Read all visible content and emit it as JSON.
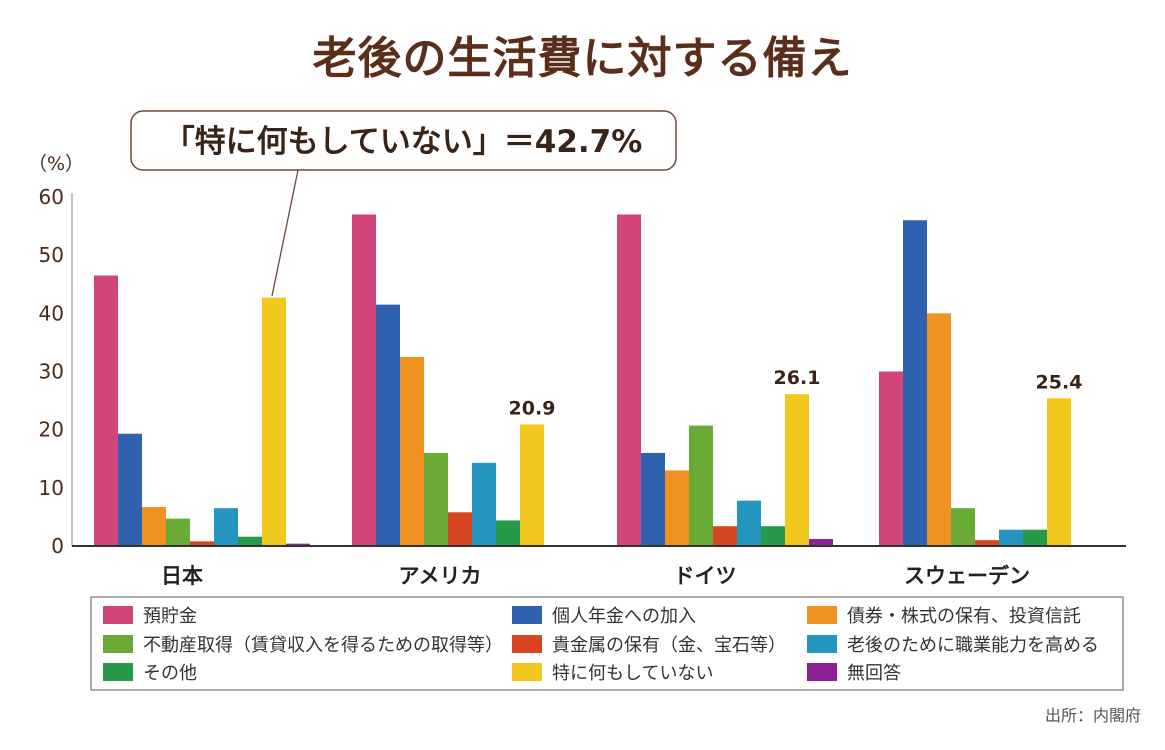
{
  "title": "老後の生活費に対する備え",
  "source": "出所：内閣府",
  "callout": "「特に何もしていない」＝42.7%",
  "chart_data": {
    "type": "bar",
    "unit_label": "（%）",
    "ylim": [
      0,
      60
    ],
    "yticks": [
      0,
      10,
      20,
      30,
      40,
      50,
      60
    ],
    "grid": false,
    "legend_position": "bottom",
    "categories": [
      "日本",
      "アメリカ",
      "ドイツ",
      "スウェーデン"
    ],
    "series": [
      {
        "name": "預貯金",
        "color": "#d0457a",
        "values": [
          46.5,
          57.0,
          57.0,
          30.0
        ]
      },
      {
        "name": "個人年金への加入",
        "color": "#2f62ae",
        "values": [
          19.3,
          41.5,
          16.0,
          56.0
        ]
      },
      {
        "name": "債券・株式の保有、投資信託",
        "color": "#ef9222",
        "values": [
          6.7,
          32.5,
          13.0,
          40.0
        ]
      },
      {
        "name": "不動産取得（賃貸収入を得るための取得等）",
        "color": "#6aab35",
        "values": [
          4.7,
          16.0,
          20.7,
          6.5
        ]
      },
      {
        "name": "貴金属の保有（金、宝石等）",
        "color": "#d74420",
        "values": [
          0.8,
          5.8,
          3.4,
          1.0
        ]
      },
      {
        "name": "老後のために職業能力を高める",
        "color": "#2596c0",
        "values": [
          6.5,
          14.3,
          7.8,
          2.8
        ]
      },
      {
        "name": "その他",
        "color": "#279a49",
        "values": [
          1.6,
          4.4,
          3.4,
          2.8
        ]
      },
      {
        "name": "特に何もしていない",
        "color": "#f2c81f",
        "values": [
          42.7,
          20.9,
          26.1,
          25.4
        ]
      },
      {
        "name": "無回答",
        "color": "#8d2096",
        "values": [
          0.4,
          0,
          1.2,
          0
        ]
      }
    ],
    "data_labels": [
      {
        "category": "アメリカ",
        "series": "特に何もしていない",
        "text": "20.9"
      },
      {
        "category": "ドイツ",
        "series": "特に何もしていない",
        "text": "26.1"
      },
      {
        "category": "スウェーデン",
        "series": "特に何もしていない",
        "text": "25.4"
      }
    ]
  }
}
